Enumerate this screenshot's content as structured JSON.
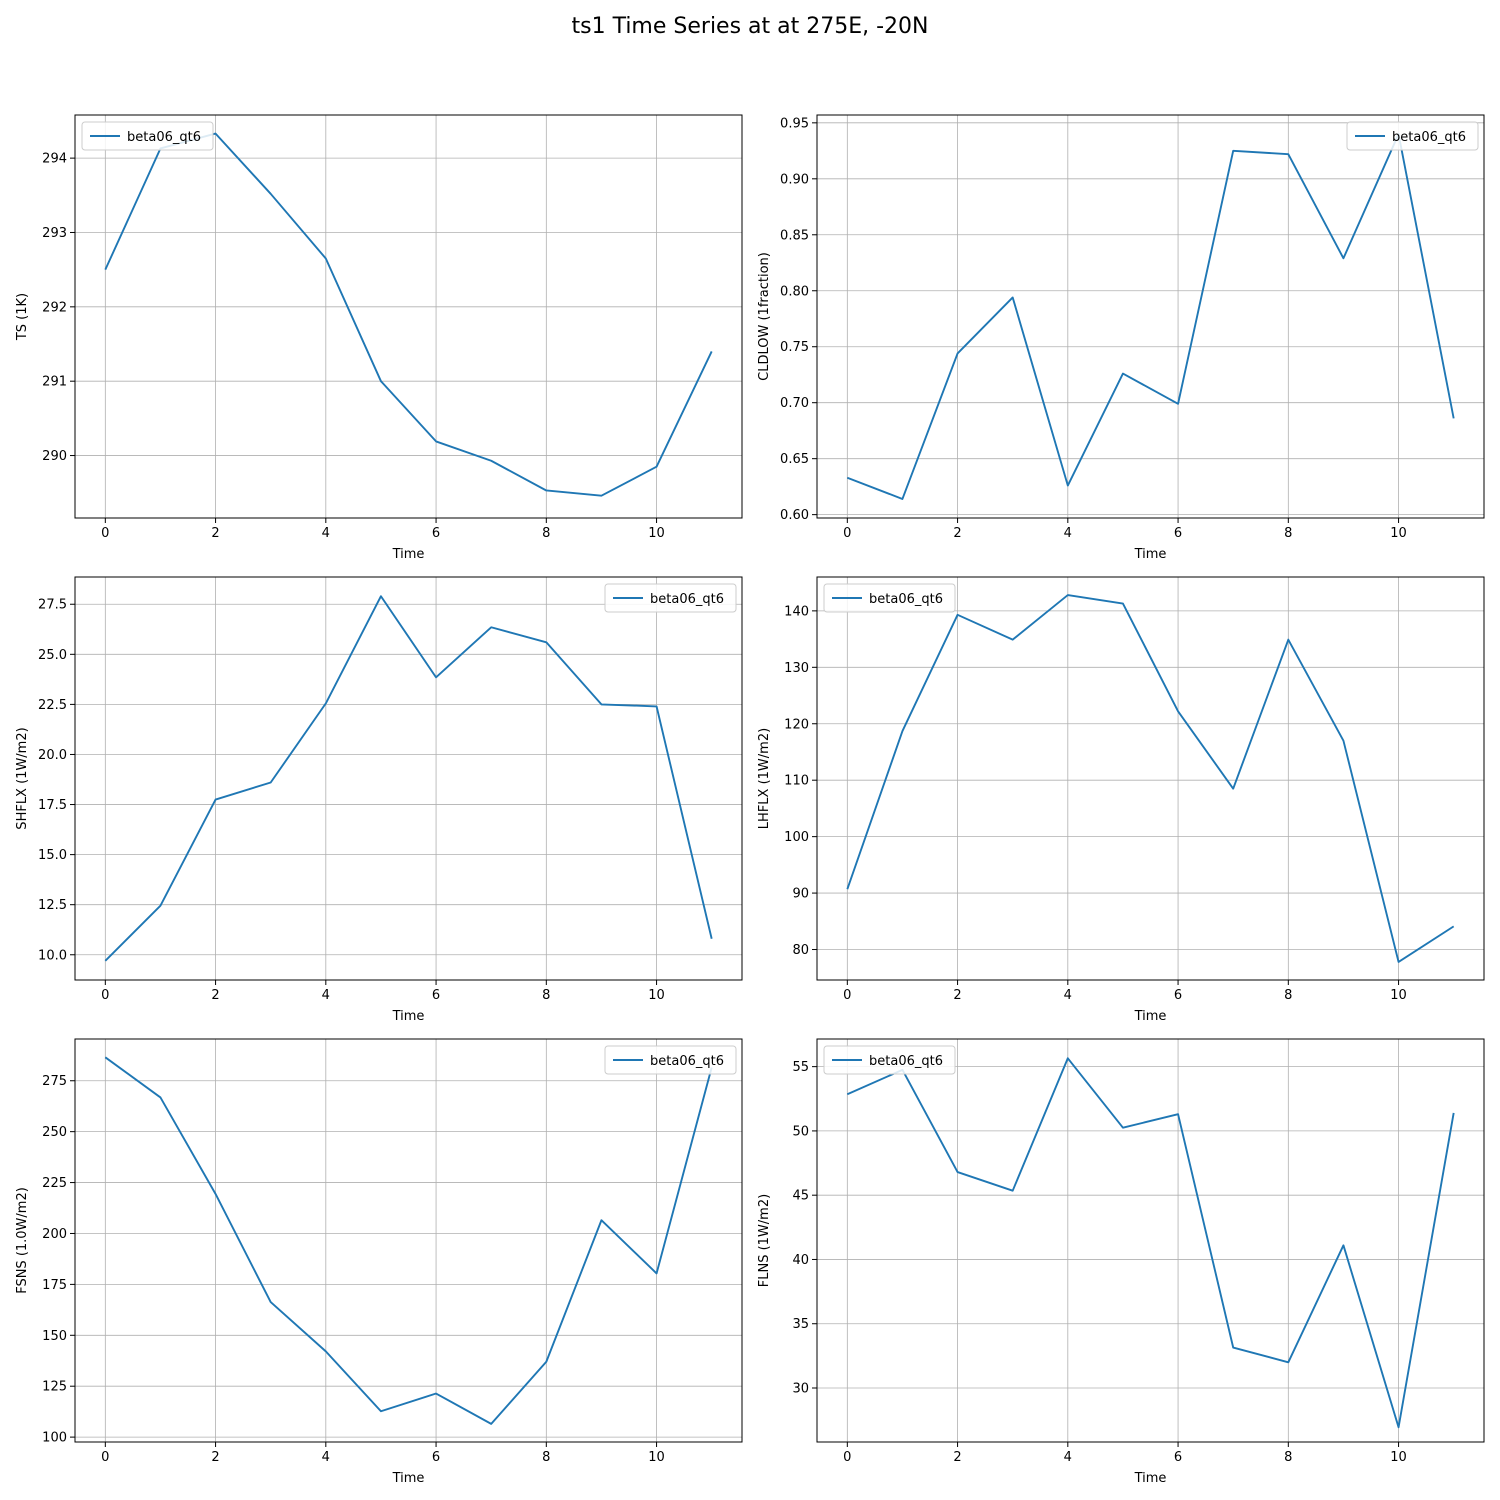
{
  "figure": {
    "title": "ts1 Time Series at at 275E, -20N"
  },
  "chart_data": [
    {
      "type": "line",
      "xlabel": "Time",
      "ylabel": "TS (1K)",
      "x": [
        0,
        1,
        2,
        3,
        4,
        5,
        6,
        7,
        8,
        9,
        10,
        11
      ],
      "xlim": [
        -0.55,
        11.55
      ],
      "xticks": [
        0,
        2,
        4,
        6,
        8,
        10
      ],
      "ylim": [
        294.58,
        289.16
      ],
      "yinverted": true,
      "yticks": [
        290,
        291,
        292,
        293,
        294
      ],
      "ytick_labels": [
        "290",
        "291",
        "292",
        "293",
        "294"
      ],
      "grid": true,
      "legend": "upper left",
      "color": "#1f77b4",
      "series": [
        {
          "name": "beta06_qt6",
          "values": [
            292.5,
            294.13,
            294.33,
            293.52,
            292.65,
            291.0,
            290.19,
            289.93,
            289.53,
            289.46,
            289.85,
            291.4
          ]
        }
      ]
    },
    {
      "type": "line",
      "xlabel": "Time",
      "ylabel": "CLDLOW (1fraction)",
      "x": [
        0,
        1,
        2,
        3,
        4,
        5,
        6,
        7,
        8,
        9,
        10,
        11
      ],
      "xlim": [
        -0.55,
        11.55
      ],
      "xticks": [
        0,
        2,
        4,
        6,
        8,
        10
      ],
      "ylim": [
        0.957,
        0.597
      ],
      "yinverted": true,
      "yticks": [
        0.6,
        0.65,
        0.7,
        0.75,
        0.8,
        0.85,
        0.9,
        0.95
      ],
      "ytick_labels": [
        "0.60",
        "0.65",
        "0.70",
        "0.75",
        "0.80",
        "0.85",
        "0.90",
        "0.95"
      ],
      "grid": true,
      "legend": "upper right",
      "color": "#1f77b4",
      "series": [
        {
          "name": "beta06_qt6",
          "values": [
            0.633,
            0.614,
            0.744,
            0.794,
            0.626,
            0.726,
            0.699,
            0.925,
            0.922,
            0.829,
            0.94,
            0.686
          ]
        }
      ]
    },
    {
      "type": "line",
      "xlabel": "Time",
      "ylabel": "SHFLX (1W/m2)",
      "x": [
        0,
        1,
        2,
        3,
        4,
        5,
        6,
        7,
        8,
        9,
        10,
        11
      ],
      "xlim": [
        -0.55,
        11.55
      ],
      "xticks": [
        0,
        2,
        4,
        6,
        8,
        10
      ],
      "ylim": [
        28.86,
        8.74
      ],
      "yinverted": true,
      "yticks": [
        10.0,
        12.5,
        15.0,
        17.5,
        20.0,
        22.5,
        25.0,
        27.5
      ],
      "ytick_labels": [
        "10.0",
        "12.5",
        "15.0",
        "17.5",
        "20.0",
        "22.5",
        "25.0",
        "27.5"
      ],
      "grid": true,
      "legend": "upper right",
      "color": "#1f77b4",
      "series": [
        {
          "name": "beta06_qt6",
          "values": [
            9.7,
            12.45,
            17.75,
            18.6,
            22.55,
            27.9,
            23.85,
            26.35,
            25.6,
            22.5,
            22.4,
            10.8
          ]
        }
      ]
    },
    {
      "type": "line",
      "xlabel": "Time",
      "ylabel": "LHFLX (1W/m2)",
      "x": [
        0,
        1,
        2,
        3,
        4,
        5,
        6,
        7,
        8,
        9,
        10,
        11
      ],
      "xlim": [
        -0.55,
        11.55
      ],
      "xticks": [
        0,
        2,
        4,
        6,
        8,
        10
      ],
      "ylim": [
        146.0,
        74.6
      ],
      "yinverted": true,
      "yticks": [
        80,
        90,
        100,
        110,
        120,
        130,
        140
      ],
      "ytick_labels": [
        "80",
        "90",
        "100",
        "110",
        "120",
        "130",
        "140"
      ],
      "grid": true,
      "legend": "upper left",
      "color": "#1f77b4",
      "series": [
        {
          "name": "beta06_qt6",
          "values": [
            90.7,
            118.7,
            139.3,
            134.9,
            142.8,
            141.3,
            122.2,
            108.5,
            134.9,
            117.0,
            77.8,
            84.1
          ]
        }
      ]
    },
    {
      "type": "line",
      "xlabel": "Time",
      "ylabel": "FSNS (1.0W/m2)",
      "x": [
        0,
        1,
        2,
        3,
        4,
        5,
        6,
        7,
        8,
        9,
        10,
        11
      ],
      "xlim": [
        -0.55,
        11.55
      ],
      "xticks": [
        0,
        2,
        4,
        6,
        8,
        10
      ],
      "ylim": [
        295.5,
        97.6
      ],
      "yinverted": true,
      "yticks": [
        100,
        125,
        150,
        175,
        200,
        225,
        250,
        275
      ],
      "ytick_labels": [
        "100",
        "125",
        "150",
        "175",
        "200",
        "225",
        "250",
        "275"
      ],
      "grid": true,
      "legend": "upper right",
      "color": "#1f77b4",
      "series": [
        {
          "name": "beta06_qt6",
          "values": [
            286.5,
            266.8,
            219.4,
            166.3,
            142.1,
            112.7,
            121.4,
            106.5,
            137.0,
            206.5,
            180.4,
            281.5
          ]
        }
      ]
    },
    {
      "type": "line",
      "xlabel": "Time",
      "ylabel": "FLNS (1W/m2)",
      "x": [
        0,
        1,
        2,
        3,
        4,
        5,
        6,
        7,
        8,
        9,
        10,
        11
      ],
      "xlim": [
        -0.55,
        11.55
      ],
      "xticks": [
        0,
        2,
        4,
        6,
        8,
        10
      ],
      "ylim": [
        57.15,
        25.8
      ],
      "yinverted": true,
      "yticks": [
        30,
        35,
        40,
        45,
        50,
        55
      ],
      "ytick_labels": [
        "30",
        "35",
        "40",
        "45",
        "50",
        "55"
      ],
      "grid": true,
      "legend": "upper left",
      "color": "#1f77b4",
      "series": [
        {
          "name": "beta06_qt6",
          "values": [
            52.85,
            54.75,
            46.8,
            45.35,
            55.65,
            50.25,
            51.3,
            33.15,
            32.0,
            41.1,
            26.95,
            51.4
          ]
        }
      ]
    }
  ]
}
